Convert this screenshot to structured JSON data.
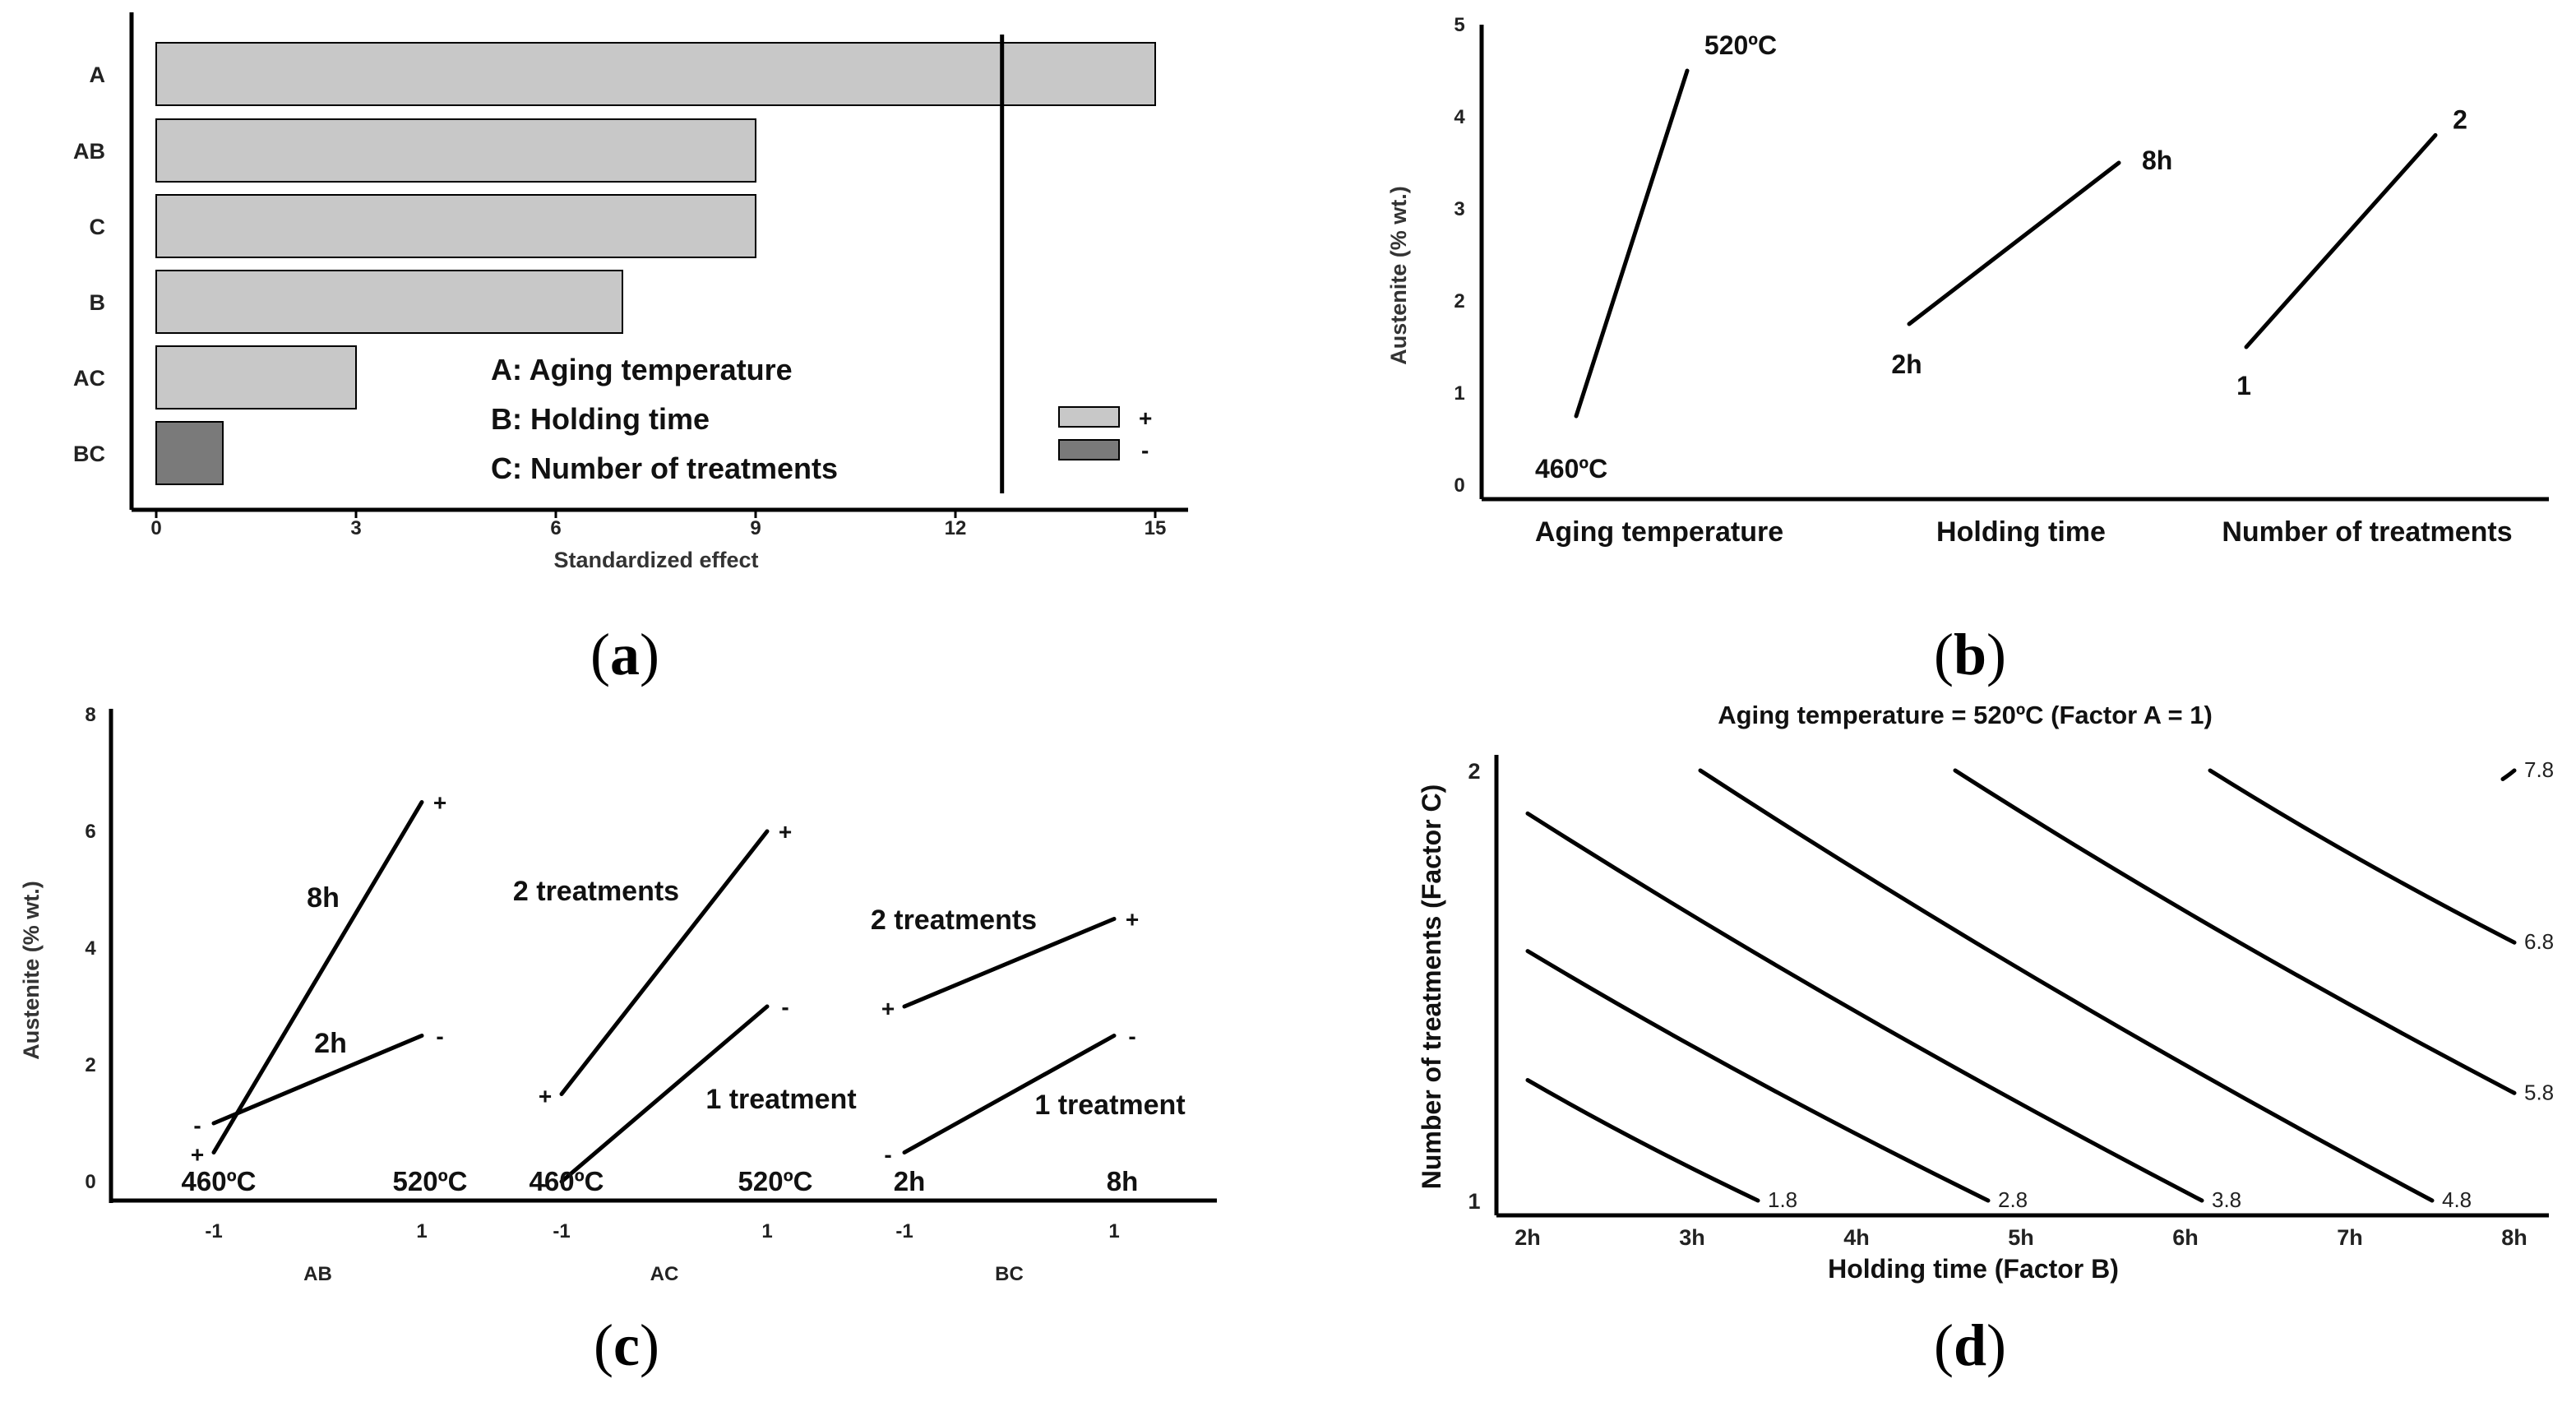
{
  "chart_data": [
    {
      "type": "bar",
      "panel": "a",
      "orientation": "horizontal",
      "caption": "a",
      "categories": [
        "A",
        "AB",
        "C",
        "B",
        "AC",
        "BC"
      ],
      "values": [
        15,
        9,
        9,
        7,
        3,
        1
      ],
      "signs": [
        "+",
        "+",
        "+",
        "+",
        "+",
        "-"
      ],
      "xlabel": "Standardized effect",
      "xlim": [
        0,
        15
      ],
      "xticks": [
        "0",
        "3",
        "6",
        "9",
        "12",
        "15"
      ],
      "reference_line": 12.7,
      "factor_labels": [
        "A: Aging temperature",
        "B: Holding time",
        "C: Number of treatments"
      ],
      "legend": [
        {
          "label": "+",
          "color": "#c8c8c8"
        },
        {
          "label": "-",
          "color": "#7a7a7a"
        }
      ],
      "colors": {
        "positive": "#c8c8c8",
        "negative": "#7a7a7a"
      }
    },
    {
      "type": "line",
      "panel": "b",
      "caption": "b",
      "ylabel": "Austenite (% wt.)",
      "ylim": [
        0,
        5
      ],
      "yticks": [
        "0",
        "1",
        "2",
        "3",
        "4",
        "5"
      ],
      "groups": [
        "Aging temperature",
        "Holding time",
        "Number of treatments"
      ],
      "series": [
        {
          "name": "Aging temperature",
          "low_label": "460ºC",
          "high_label": "520ºC",
          "values": [
            0.75,
            4.5
          ]
        },
        {
          "name": "Holding time",
          "low_label": "2h",
          "high_label": "8h",
          "values": [
            1.75,
            3.5
          ]
        },
        {
          "name": "Number of treatments",
          "low_label": "1",
          "high_label": "2",
          "values": [
            1.5,
            3.8
          ]
        }
      ]
    },
    {
      "type": "line",
      "panel": "c",
      "caption": "c",
      "ylabel": "Austenite (% wt.)",
      "ylim": [
        0,
        8
      ],
      "yticks": [
        "0",
        "2",
        "4",
        "6",
        "8"
      ],
      "groups": [
        {
          "name": "AB",
          "x_ticks": [
            "-1",
            "1"
          ],
          "level_labels": [
            "460ºC",
            "520ºC"
          ],
          "series": [
            {
              "name": "8h",
              "sign_start": "+",
              "sign_end": "+",
              "values": [
                0.5,
                6.5
              ]
            },
            {
              "name": "2h",
              "sign_start": "-",
              "sign_end": "-",
              "values": [
                1.0,
                2.5
              ]
            }
          ]
        },
        {
          "name": "AC",
          "x_ticks": [
            "-1",
            "1"
          ],
          "level_labels": [
            "460ºC",
            "520ºC"
          ],
          "series": [
            {
              "name": "2 treatments",
              "sign_start": "+",
              "sign_end": "+",
              "values": [
                1.5,
                6.0
              ]
            },
            {
              "name": "1 treatment",
              "sign_start": "-",
              "sign_end": "-",
              "values": [
                0.0,
                3.0
              ]
            }
          ]
        },
        {
          "name": "BC",
          "x_ticks": [
            "-1",
            "1"
          ],
          "level_labels": [
            "2h",
            "8h"
          ],
          "series": [
            {
              "name": "2 treatments",
              "sign_start": "+",
              "sign_end": "+",
              "values": [
                3.0,
                4.5
              ]
            },
            {
              "name": "1 treatment",
              "sign_start": "-",
              "sign_end": "-",
              "values": [
                0.5,
                2.5
              ]
            }
          ]
        }
      ]
    },
    {
      "type": "contour",
      "panel": "d",
      "caption": "d",
      "title": "Aging temperature = 520ºC (Factor A = 1)",
      "xlabel": "Holding time (Factor B)",
      "ylabel": "Number of treatments (Factor C)",
      "xlim": [
        2,
        8
      ],
      "ylim": [
        1,
        2
      ],
      "xticks": [
        "2h",
        "3h",
        "4h",
        "5h",
        "6h",
        "7h",
        "8h"
      ],
      "yticks": [
        "1",
        "2"
      ],
      "contours": [
        {
          "level": "1.8",
          "points": [
            [
              2.0,
              1.28
            ],
            [
              3.4,
              1.0
            ]
          ]
        },
        {
          "level": "2.8",
          "points": [
            [
              2.0,
              1.58
            ],
            [
              4.8,
              1.0
            ]
          ]
        },
        {
          "level": "3.8",
          "points": [
            [
              2.0,
              1.9
            ],
            [
              6.1,
              1.0
            ]
          ]
        },
        {
          "level": "4.8",
          "points": [
            [
              3.05,
              2.0
            ],
            [
              7.5,
              1.0
            ]
          ]
        },
        {
          "level": "5.8",
          "points": [
            [
              4.6,
              2.0
            ],
            [
              8.0,
              1.25
            ]
          ]
        },
        {
          "level": "6.8",
          "points": [
            [
              6.15,
              2.0
            ],
            [
              8.0,
              1.6
            ]
          ]
        },
        {
          "level": "7.8",
          "points": [
            [
              7.93,
              1.98
            ],
            [
              8.0,
              2.0
            ]
          ]
        }
      ]
    }
  ]
}
